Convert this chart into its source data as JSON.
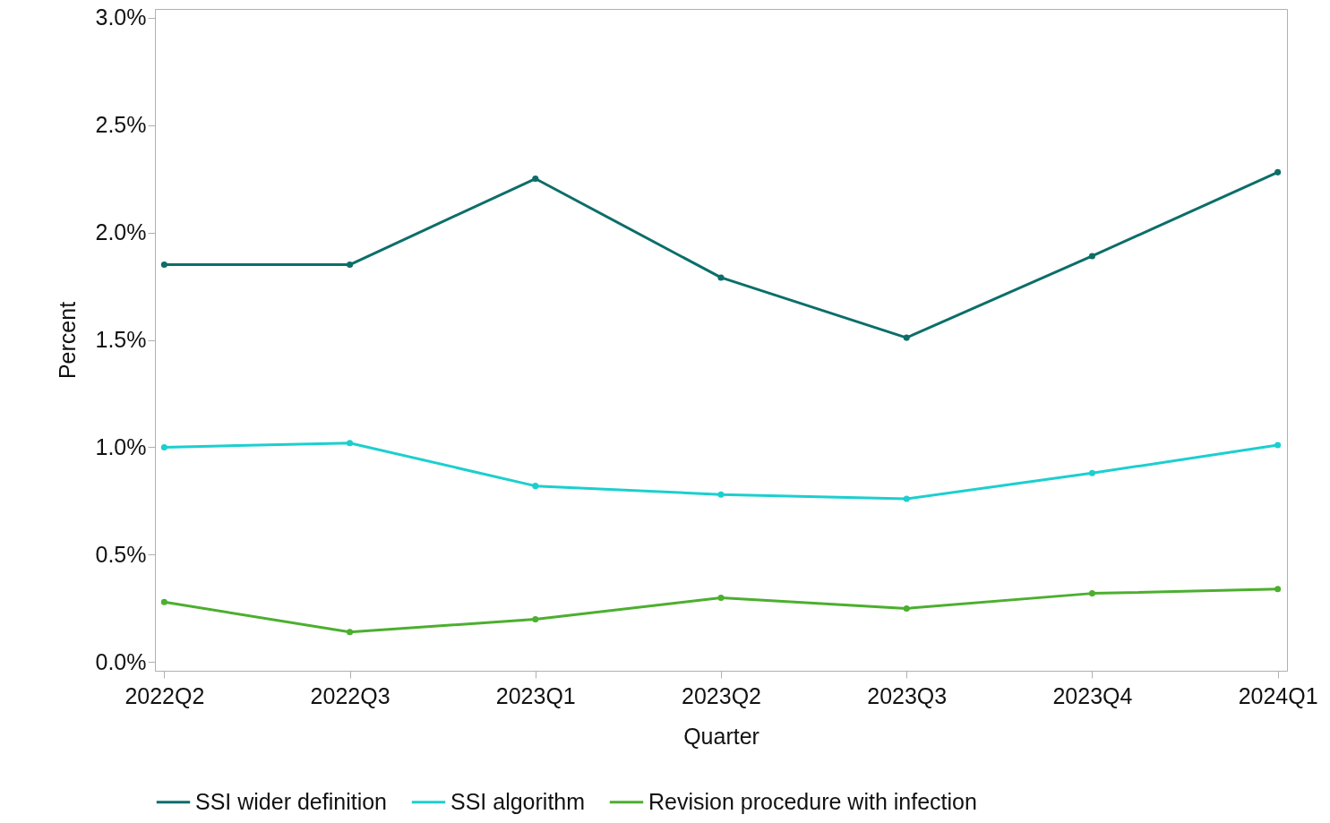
{
  "chart_data": {
    "type": "line",
    "xlabel": "Quarter",
    "ylabel": "Percent",
    "categories": [
      "2022Q2",
      "2022Q3",
      "2023Q1",
      "2023Q2",
      "2023Q3",
      "2023Q4",
      "2024Q1"
    ],
    "series": [
      {
        "name": "SSI wider definition",
        "color": "#0b6e69",
        "values": [
          1.85,
          1.85,
          2.25,
          1.79,
          1.51,
          1.89,
          2.28
        ]
      },
      {
        "name": "SSI algorithm",
        "color": "#1ccfcf",
        "values": [
          1.0,
          1.02,
          0.82,
          0.78,
          0.76,
          0.88,
          1.01
        ]
      },
      {
        "name": "Revision procedure with infection",
        "color": "#4caf2f",
        "values": [
          0.28,
          0.14,
          0.2,
          0.3,
          0.25,
          0.32,
          0.34
        ]
      }
    ],
    "ylim": [
      -0.04,
      3.04
    ],
    "yticks": [
      {
        "value": 0,
        "label": "0.0%"
      },
      {
        "value": 0.5,
        "label": "0.5%"
      },
      {
        "value": 1,
        "label": "1.0%"
      },
      {
        "value": 1.5,
        "label": "1.5%"
      },
      {
        "value": 2,
        "label": "2.0%"
      },
      {
        "value": 2.5,
        "label": "2.5%"
      },
      {
        "value": 3,
        "label": "3.0%"
      }
    ],
    "grid": false,
    "legend": "bottom",
    "marker": "circle",
    "line_style": "solid"
  }
}
